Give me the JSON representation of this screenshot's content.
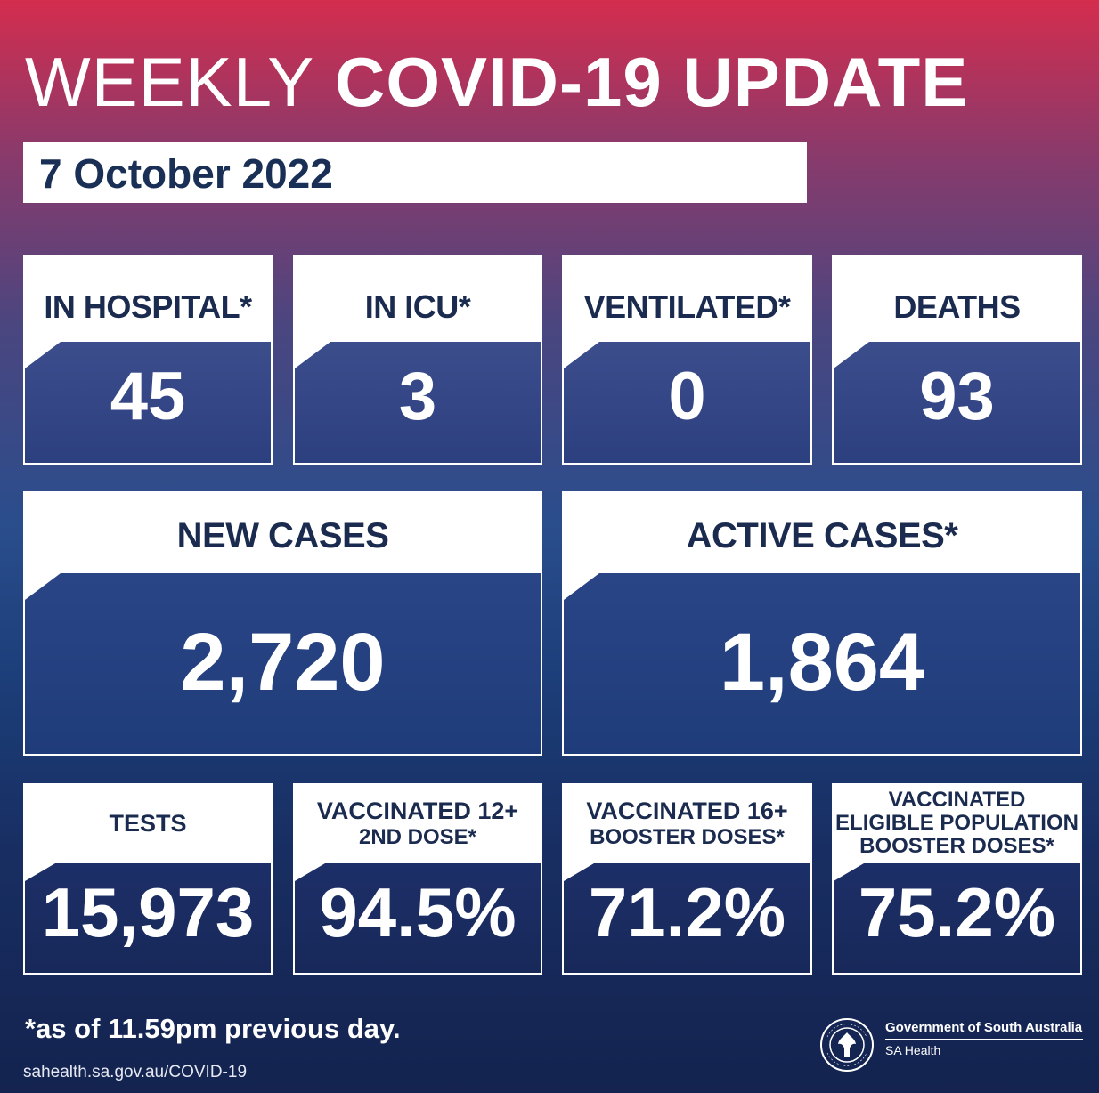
{
  "header": {
    "title_part1": "WEEKLY",
    "title_part2": "COVID-19 UPDATE",
    "date": "7 October 2022"
  },
  "row1": [
    {
      "label": "IN HOSPITAL*",
      "value": "45"
    },
    {
      "label": "IN ICU*",
      "value": "3"
    },
    {
      "label": "VENTILATED*",
      "value": "0"
    },
    {
      "label": "DEATHS",
      "value": "93"
    }
  ],
  "row2": [
    {
      "label": "NEW CASES",
      "value": "2,720"
    },
    {
      "label": "ACTIVE CASES*",
      "value": "1,864"
    }
  ],
  "row3": [
    {
      "label_lines": [
        "TESTS"
      ],
      "value": "15,973"
    },
    {
      "label_lines": [
        "VACCINATED 12+",
        "2ND DOSE*"
      ],
      "value": "94.5%"
    },
    {
      "label_lines": [
        "VACCINATED 16+",
        "BOOSTER DOSES*"
      ],
      "value": "71.2%"
    },
    {
      "label_lines": [
        "VACCINATED",
        "ELIGIBLE POPULATION",
        "BOOSTER DOSES*"
      ],
      "value": "75.2%"
    }
  ],
  "footer": {
    "note": "*as of 11.59pm previous day.",
    "url": "sahealth.sa.gov.au/COVID-19",
    "government": "Government of South Australia",
    "department": "SA Health",
    "seal_text": "SOUTH AUSTRALIA"
  },
  "colors": {
    "top": "#d42d4e",
    "navy": "#1a2b4f",
    "box_blue": "#2c3f7f"
  }
}
